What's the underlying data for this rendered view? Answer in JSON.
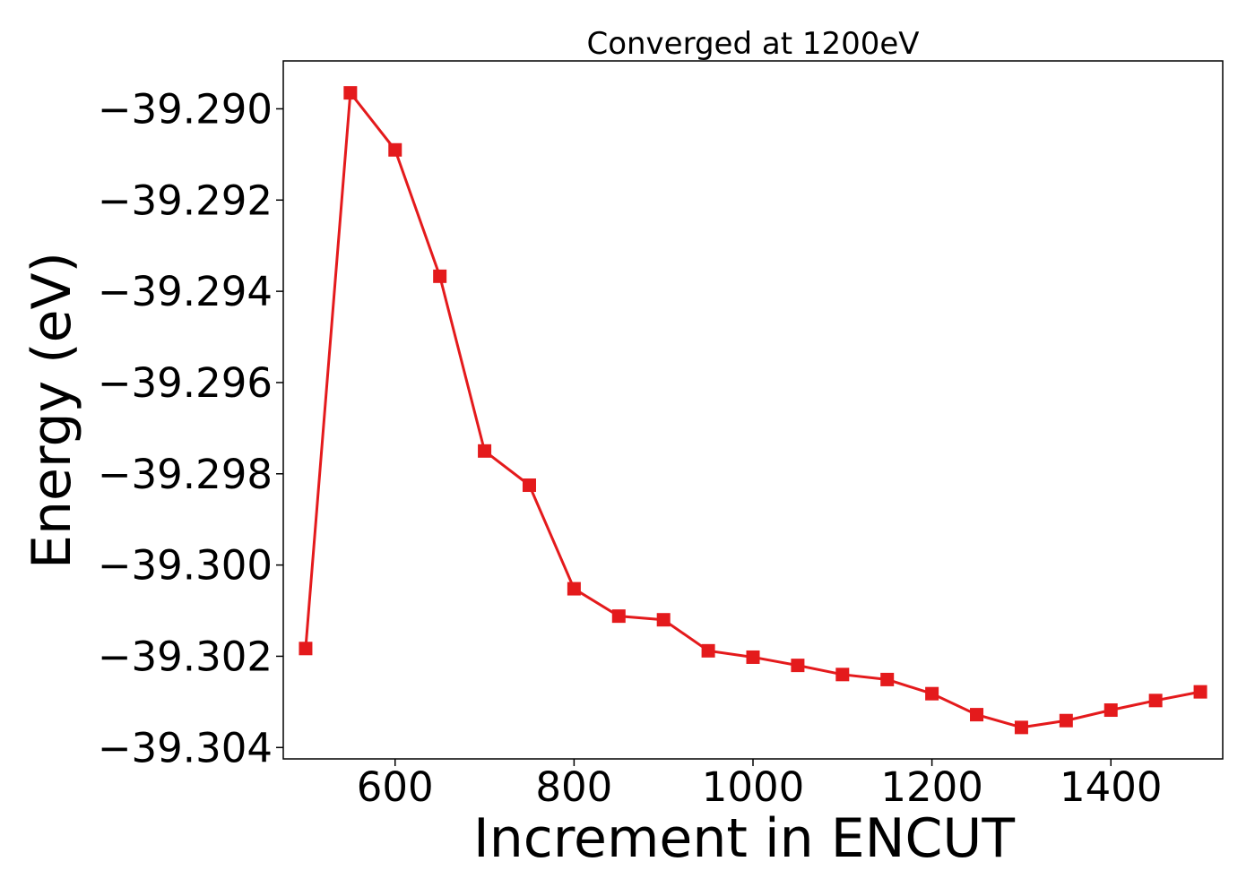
{
  "chart_data": {
    "type": "line",
    "title": "Converged at 1200eV",
    "xlabel": "Increment in ENCUT",
    "ylabel": "Energy (eV)",
    "xlim": [
      475,
      1525
    ],
    "ylim": [
      -39.30425,
      -39.28895
    ],
    "x_ticks": [
      600,
      800,
      1000,
      1200,
      1400
    ],
    "x_tick_labels": [
      "600",
      "800",
      "1000",
      "1200",
      "1400"
    ],
    "y_ticks": [
      -39.29,
      -39.292,
      -39.294,
      -39.296,
      -39.298,
      -39.3,
      -39.302,
      -39.304
    ],
    "y_tick_labels": [
      "−39.290",
      "−39.292",
      "−39.294",
      "−39.296",
      "−39.298",
      "−39.300",
      "−39.302",
      "−39.304"
    ],
    "grid": false,
    "series": [
      {
        "color": "#e41a1c",
        "marker": "square",
        "x": [
          500,
          550,
          600,
          650,
          700,
          750,
          800,
          850,
          900,
          950,
          1000,
          1050,
          1100,
          1150,
          1200,
          1250,
          1300,
          1350,
          1400,
          1450,
          1500
        ],
        "y": [
          -39.30183,
          -39.28965,
          -39.2909,
          -39.29367,
          -39.2975,
          -39.29825,
          -39.30052,
          -39.30112,
          -39.3012,
          -39.30188,
          -39.30202,
          -39.3022,
          -39.3024,
          -39.30251,
          -39.30282,
          -39.30328,
          -39.30356,
          -39.30341,
          -39.30318,
          -39.30297,
          -39.30278
        ]
      }
    ]
  }
}
